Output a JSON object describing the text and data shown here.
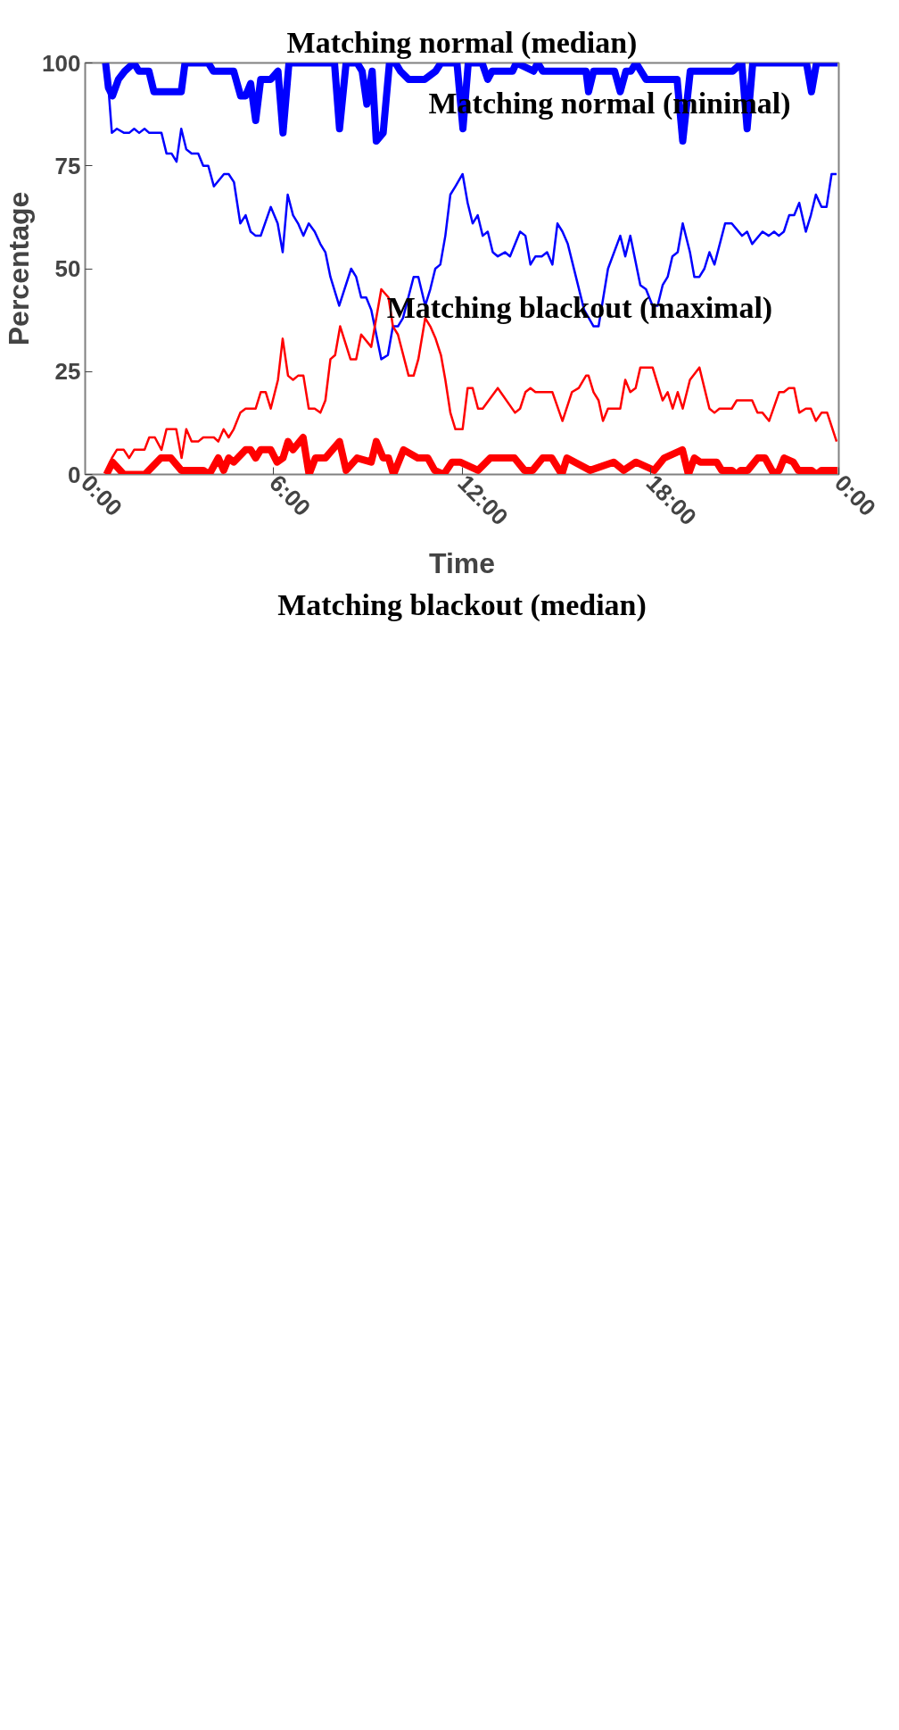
{
  "chart_data": {
    "type": "line",
    "xlabel": "Time",
    "ylabel": "Percentage",
    "xlim": [
      0,
      24
    ],
    "xticks": [
      {
        "value": 0,
        "label": "0:00"
      },
      {
        "value": 6,
        "label": "6:00"
      },
      {
        "value": 12,
        "label": "12:00"
      },
      {
        "value": 18,
        "label": "18:00"
      },
      {
        "value": 24,
        "label": "0:00"
      }
    ],
    "ylim": [
      0,
      100
    ],
    "yticks": [
      0,
      25,
      50,
      75,
      100
    ],
    "series": [
      {
        "color": "#0000ff",
        "x": [
          0.65,
          0.74,
          0.87,
          1.06,
          1.26,
          1.55,
          1.71,
          2.03,
          2.19,
          3.06,
          3.18,
          3.92,
          4.08,
          4.73,
          4.95,
          5.11,
          5.27,
          5.43,
          5.59,
          5.91,
          6.14,
          6.3,
          6.49,
          7.94,
          8.1,
          8.31,
          8.66,
          8.82,
          8.97,
          9.14,
          9.27,
          9.49,
          9.69,
          9.88,
          10.04,
          10.3,
          10.81,
          11.16,
          11.33,
          11.84,
          12.03,
          12.2,
          12.64,
          12.82,
          12.96,
          13.61,
          13.73,
          14.28,
          14.41,
          14.57,
          15.95,
          16.03,
          16.19,
          16.86,
          17.04,
          17.22,
          17.38,
          17.54,
          17.86,
          18.85,
          19.03,
          19.27,
          20.62,
          20.91,
          21.08,
          21.26,
          22.97,
          23.13,
          23.29,
          23.96
        ],
        "values": [
          100,
          94,
          92,
          96,
          98,
          100,
          98,
          98,
          93,
          93,
          100,
          100,
          98,
          98,
          92,
          92,
          95,
          86,
          96,
          96,
          98,
          83,
          100,
          100,
          84,
          100,
          100,
          98,
          90,
          98,
          81,
          83,
          100,
          100,
          98,
          96,
          96,
          98,
          100,
          100,
          84,
          100,
          100,
          96,
          98,
          98,
          100,
          98,
          100,
          98,
          98,
          93,
          98,
          98,
          93,
          98,
          98,
          100,
          96,
          96,
          81,
          98,
          98,
          100,
          84,
          100,
          100,
          93,
          100,
          100
        ]
      },
      {
        "color": "#0000ff",
        "x": [
          0.74,
          0.85,
          1.01,
          1.24,
          1.4,
          1.56,
          1.72,
          1.89,
          2.04,
          2.43,
          2.59,
          2.75,
          2.91,
          3.06,
          3.22,
          3.39,
          3.6,
          3.76,
          3.92,
          4.1,
          4.42,
          4.57,
          4.74,
          4.94,
          5.11,
          5.27,
          5.43,
          5.59,
          5.91,
          6.13,
          6.29,
          6.45,
          6.62,
          6.78,
          6.95,
          7.12,
          7.31,
          7.49,
          7.65,
          7.81,
          8.09,
          8.47,
          8.63,
          8.79,
          8.95,
          9.11,
          9.43,
          9.64,
          9.8,
          9.96,
          10.12,
          10.46,
          10.61,
          10.83,
          10.99,
          11.15,
          11.31,
          11.47,
          11.63,
          11.79,
          12.02,
          12.18,
          12.34,
          12.5,
          12.66,
          12.82,
          12.98,
          13.14,
          13.37,
          13.53,
          13.85,
          14.02,
          14.18,
          14.34,
          14.54,
          14.71,
          14.88,
          15.04,
          15.2,
          15.37,
          15.89,
          16.19,
          16.35,
          16.65,
          17.04,
          17.2,
          17.36,
          17.68,
          17.86,
          18.07,
          18.23,
          18.39,
          18.55,
          18.7,
          18.87,
          19.03,
          19.26,
          19.4,
          19.56,
          19.72,
          19.88,
          20.04,
          20.38,
          20.59,
          20.92,
          21.08,
          21.24,
          21.57,
          21.77,
          21.94,
          22.09,
          22.25,
          22.42,
          22.58,
          22.74,
          22.95,
          23.11,
          23.27,
          23.45,
          23.61,
          23.77,
          23.93
        ],
        "values": [
          94,
          83,
          84,
          83,
          83,
          84,
          83,
          84,
          83,
          83,
          78,
          78,
          76,
          84,
          79,
          78,
          78,
          75,
          75,
          70,
          73,
          73,
          71,
          61,
          63,
          59,
          58,
          58,
          65,
          61,
          54,
          68,
          63,
          61,
          58,
          61,
          59,
          56,
          54,
          48,
          41,
          50,
          48,
          43,
          43,
          40,
          28,
          29,
          36,
          36,
          38,
          48,
          48,
          41,
          45,
          50,
          51,
          58,
          68,
          70,
          73,
          66,
          61,
          63,
          58,
          59,
          54,
          53,
          54,
          53,
          59,
          58,
          51,
          53,
          53,
          54,
          51,
          61,
          59,
          56,
          40,
          36,
          36,
          50,
          58,
          53,
          58,
          46,
          45,
          41,
          41,
          46,
          48,
          53,
          54,
          61,
          54,
          48,
          48,
          50,
          54,
          51,
          61,
          61,
          58,
          59,
          56,
          59,
          58,
          59,
          58,
          59,
          63,
          63,
          66,
          59,
          63,
          68,
          65,
          65,
          73,
          73
        ]
      },
      {
        "color": "#ff0000",
        "x": [
          0.68,
          0.85,
          1.01,
          1.23,
          1.4,
          1.56,
          1.89,
          2.04,
          2.22,
          2.43,
          2.59,
          2.9,
          3.07,
          3.22,
          3.39,
          3.6,
          3.76,
          4.1,
          4.24,
          4.41,
          4.57,
          4.73,
          4.94,
          5.11,
          5.43,
          5.59,
          5.75,
          5.91,
          6.14,
          6.29,
          6.46,
          6.62,
          6.78,
          6.95,
          7.12,
          7.31,
          7.49,
          7.65,
          7.81,
          7.96,
          8.12,
          8.45,
          8.63,
          8.79,
          9.11,
          9.43,
          9.66,
          9.8,
          9.96,
          10.3,
          10.46,
          10.61,
          10.83,
          10.99,
          11.16,
          11.33,
          11.47,
          11.63,
          11.79,
          12.02,
          12.18,
          12.34,
          12.51,
          12.66,
          13.14,
          13.69,
          13.85,
          14.02,
          14.18,
          14.34,
          14.88,
          15.2,
          15.5,
          15.72,
          15.95,
          16.03,
          16.19,
          16.35,
          16.49,
          16.65,
          17.04,
          17.2,
          17.36,
          17.53,
          17.68,
          18.07,
          18.39,
          18.55,
          18.71,
          18.87,
          19.03,
          19.26,
          19.56,
          19.88,
          20.04,
          20.2,
          20.59,
          20.75,
          21.24,
          21.41,
          21.57,
          21.78,
          22.1,
          22.25,
          22.41,
          22.58,
          22.74,
          22.95,
          23.11,
          23.27,
          23.45,
          23.63,
          23.93
        ],
        "values": [
          0,
          4,
          6,
          6,
          4,
          6,
          6,
          9,
          9,
          6,
          11,
          11,
          4,
          11,
          8,
          8,
          9,
          9,
          8,
          11,
          9,
          11,
          15,
          16,
          16,
          20,
          20,
          16,
          23,
          33,
          24,
          23,
          24,
          24,
          16,
          16,
          15,
          18,
          28,
          29,
          36,
          28,
          28,
          34,
          31,
          45,
          43,
          36,
          34,
          24,
          24,
          28,
          38,
          36,
          33,
          29,
          23,
          15,
          11,
          11,
          21,
          21,
          16,
          16,
          21,
          15,
          16,
          20,
          21,
          20,
          20,
          13,
          20,
          21,
          24,
          24,
          20,
          18,
          13,
          16,
          16,
          23,
          20,
          21,
          26,
          26,
          18,
          20,
          16,
          20,
          16,
          23,
          26,
          16,
          15,
          16,
          16,
          18,
          18,
          15,
          15,
          13,
          20,
          20,
          21,
          21,
          15,
          16,
          16,
          13,
          15,
          15,
          8
        ]
      },
      {
        "color": "#ff0000",
        "x": [
          0.68,
          0.87,
          1.23,
          1.9,
          2.41,
          2.61,
          2.73,
          3.06,
          3.76,
          3.95,
          4.24,
          4.41,
          4.57,
          4.73,
          5.11,
          5.27,
          5.43,
          5.59,
          5.91,
          6.11,
          6.3,
          6.46,
          6.62,
          6.94,
          7.13,
          7.33,
          7.65,
          8.1,
          8.31,
          8.66,
          9.11,
          9.27,
          9.49,
          9.66,
          9.82,
          10.14,
          10.59,
          10.91,
          11.13,
          11.42,
          11.68,
          11.94,
          12.51,
          12.9,
          13.28,
          13.67,
          13.99,
          14.25,
          14.57,
          14.86,
          15.18,
          15.34,
          16.08,
          16.83,
          17.15,
          17.54,
          18.12,
          18.44,
          19.02,
          19.21,
          19.4,
          19.59,
          20.11,
          20.27,
          20.59,
          20.75,
          20.88,
          21.1,
          21.42,
          21.65,
          21.94,
          22.1,
          22.26,
          22.55,
          22.71,
          23.13,
          23.29,
          23.45,
          23.96
        ],
        "values": [
          0,
          3,
          0,
          0,
          4,
          4,
          4,
          1,
          1,
          0,
          4,
          1,
          4,
          3,
          6,
          6,
          4,
          6,
          6,
          3,
          4,
          8,
          6,
          9,
          0,
          4,
          4,
          8,
          1,
          4,
          3,
          8,
          4,
          4,
          0,
          6,
          4,
          4,
          1,
          0,
          3,
          3,
          1,
          4,
          4,
          4,
          1,
          1,
          4,
          4,
          0,
          4,
          1,
          3,
          1,
          3,
          1,
          4,
          6,
          0,
          4,
          3,
          3,
          1,
          1,
          0,
          1,
          1,
          4,
          4,
          0,
          1,
          4,
          3,
          1,
          1,
          0,
          1,
          1
        ]
      }
    ],
    "annotations": [
      "Matching normal (median)",
      "Matching normal (minimal)",
      "Matching blackout (maximal)",
      "Matching blackout (median)"
    ]
  }
}
